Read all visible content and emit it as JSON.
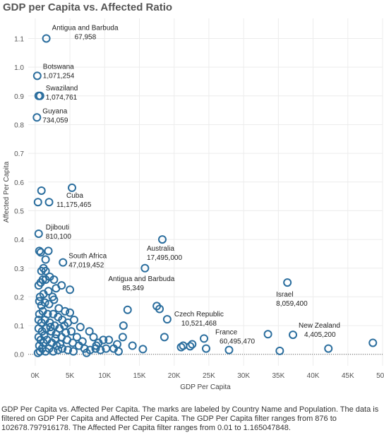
{
  "title": "GDP per Capita vs. Affected Ratio",
  "caption": "GDP Per Capita vs. Affected Per Capita.  The marks are labeled by Country Name and Population.  The data is filtered on GDP Per Capita and Affected Per Capita. The GDP Per Capita filter ranges from 876 to 102678.797916178. The Affected Per Capita filter ranges from 0.01 to 1.165047848.",
  "colors": {
    "mark": "#2b6e9e",
    "grid": "#ececec",
    "zero_line": "#666666"
  },
  "chart_data": {
    "type": "scatter",
    "xlabel": "GDP Per Capita",
    "ylabel": "Affected Per Capita",
    "xlim": [
      -1000,
      50000
    ],
    "ylim": [
      -0.04,
      1.17
    ],
    "grid": true,
    "x_ticks": [
      0,
      5000,
      10000,
      15000,
      20000,
      25000,
      30000,
      35000,
      40000,
      45000,
      50000
    ],
    "x_tick_labels": [
      "0K",
      "5K",
      "10K",
      "15K",
      "20K",
      "25K",
      "30K",
      "35K",
      "40K",
      "45K",
      "50K"
    ],
    "y_ticks": [
      0.0,
      0.1,
      0.2,
      0.3,
      0.4,
      0.5,
      0.6,
      0.7,
      0.8,
      0.9,
      1.0,
      1.1
    ],
    "y_tick_labels": [
      "0.0",
      "0.1",
      "0.2",
      "0.3",
      "0.4",
      "0.5",
      "0.6",
      "0.7",
      "0.8",
      "0.9",
      "1.0",
      "1.1"
    ],
    "labeled_points": [
      {
        "country": "Antigua and Barbuda",
        "population": "67,958",
        "x": 1600,
        "y": 1.1
      },
      {
        "country": "Botswana",
        "population": "1,071,254",
        "x": 300,
        "y": 0.97
      },
      {
        "country": "Swaziland",
        "population": "1,074,761",
        "x": 500,
        "y": 0.9
      },
      {
        "country": "Guyana",
        "population": "734,059",
        "x": 250,
        "y": 0.825
      },
      {
        "country": "Cuba",
        "population": "11,175,465",
        "x": 5300,
        "y": 0.58
      },
      {
        "country": "Djibouti",
        "population": "810,100",
        "x": 500,
        "y": 0.42
      },
      {
        "country": "South Africa",
        "population": "47,019,452",
        "x": 4000,
        "y": 0.32
      },
      {
        "country": "Australia",
        "population": "17,495,000",
        "x": 18300,
        "y": 0.4
      },
      {
        "country": "Antigua and Barbuda",
        "population": "85,349",
        "x": 15800,
        "y": 0.3
      },
      {
        "country": "Israel",
        "population": "8,059,400",
        "x": 36300,
        "y": 0.25
      },
      {
        "country": "Czech Republic",
        "population": "10,521,468",
        "x": 19000,
        "y": 0.122
      },
      {
        "country": "France",
        "population": "60,495,470",
        "x": 24300,
        "y": 0.055
      },
      {
        "country": "New Zealand",
        "population": "4,405,200",
        "x": 37100,
        "y": 0.068
      }
    ],
    "points": [
      [
        700,
        0.9
      ],
      [
        900,
        0.57
      ],
      [
        2000,
        0.53
      ],
      [
        400,
        0.53
      ],
      [
        600,
        0.36
      ],
      [
        800,
        0.355
      ],
      [
        1900,
        0.36
      ],
      [
        1200,
        0.3
      ],
      [
        1500,
        0.33
      ],
      [
        900,
        0.29
      ],
      [
        1500,
        0.29
      ],
      [
        500,
        0.24
      ],
      [
        800,
        0.25
      ],
      [
        1100,
        0.26
      ],
      [
        1500,
        0.26
      ],
      [
        2100,
        0.27
      ],
      [
        2700,
        0.26
      ],
      [
        3800,
        0.24
      ],
      [
        5000,
        0.225
      ],
      [
        700,
        0.2
      ],
      [
        1200,
        0.21
      ],
      [
        1900,
        0.22
      ],
      [
        2500,
        0.2
      ],
      [
        3000,
        0.23
      ],
      [
        600,
        0.185
      ],
      [
        900,
        0.17
      ],
      [
        1400,
        0.18
      ],
      [
        2000,
        0.175
      ],
      [
        2700,
        0.19
      ],
      [
        3400,
        0.16
      ],
      [
        4300,
        0.15
      ],
      [
        5000,
        0.145
      ],
      [
        5600,
        0.12
      ],
      [
        4700,
        0.11
      ],
      [
        3900,
        0.12
      ],
      [
        3300,
        0.13
      ],
      [
        2600,
        0.14
      ],
      [
        1800,
        0.14
      ],
      [
        1100,
        0.15
      ],
      [
        600,
        0.14
      ],
      [
        500,
        0.12
      ],
      [
        900,
        0.11
      ],
      [
        1400,
        0.12
      ],
      [
        2100,
        0.11
      ],
      [
        2800,
        0.1
      ],
      [
        3500,
        0.09
      ],
      [
        4200,
        0.1
      ],
      [
        5200,
        0.08
      ],
      [
        6000,
        0.06
      ],
      [
        500,
        0.09
      ],
      [
        1000,
        0.08
      ],
      [
        1600,
        0.09
      ],
      [
        2300,
        0.08
      ],
      [
        3000,
        0.07
      ],
      [
        3800,
        0.06
      ],
      [
        4600,
        0.05
      ],
      [
        5400,
        0.04
      ],
      [
        6300,
        0.03
      ],
      [
        7100,
        0.02
      ],
      [
        7900,
        0.015
      ],
      [
        8700,
        0.02
      ],
      [
        9400,
        0.015
      ],
      [
        500,
        0.06
      ],
      [
        800,
        0.05
      ],
      [
        1200,
        0.04
      ],
      [
        1700,
        0.05
      ],
      [
        2400,
        0.04
      ],
      [
        3100,
        0.03
      ],
      [
        3900,
        0.02
      ],
      [
        4700,
        0.015
      ],
      [
        5500,
        0.01
      ],
      [
        600,
        0.03
      ],
      [
        1000,
        0.02
      ],
      [
        1500,
        0.01
      ],
      [
        2000,
        0.02
      ],
      [
        2600,
        0.01
      ],
      [
        3300,
        0.015
      ],
      [
        700,
        0.01
      ],
      [
        7800,
        0.08
      ],
      [
        8400,
        0.06
      ],
      [
        9100,
        0.04
      ],
      [
        9800,
        0.05
      ],
      [
        10600,
        0.05
      ],
      [
        11300,
        0.02
      ],
      [
        12000,
        0.01
      ],
      [
        12700,
        0.1
      ],
      [
        13300,
        0.155
      ],
      [
        12600,
        0.06
      ],
      [
        14000,
        0.03
      ],
      [
        15500,
        0.018
      ],
      [
        17500,
        0.168
      ],
      [
        17900,
        0.158
      ],
      [
        18600,
        0.06
      ],
      [
        21000,
        0.025
      ],
      [
        21300,
        0.03
      ],
      [
        22300,
        0.028
      ],
      [
        22600,
        0.035
      ],
      [
        24600,
        0.02
      ],
      [
        27900,
        0.015
      ],
      [
        33500,
        0.07
      ],
      [
        35200,
        0.012
      ],
      [
        42200,
        0.02
      ],
      [
        48600,
        0.04
      ],
      [
        11800,
        0.035
      ],
      [
        10200,
        0.02
      ],
      [
        2900,
        0.055
      ],
      [
        4400,
        0.075
      ],
      [
        6800,
        0.045
      ],
      [
        400,
        0.005
      ],
      [
        1300,
        0.065
      ],
      [
        2200,
        0.095
      ],
      [
        3600,
        0.035
      ],
      [
        7400,
        0.005
      ],
      [
        8800,
        0.03
      ],
      [
        6500,
        0.095
      ]
    ]
  }
}
